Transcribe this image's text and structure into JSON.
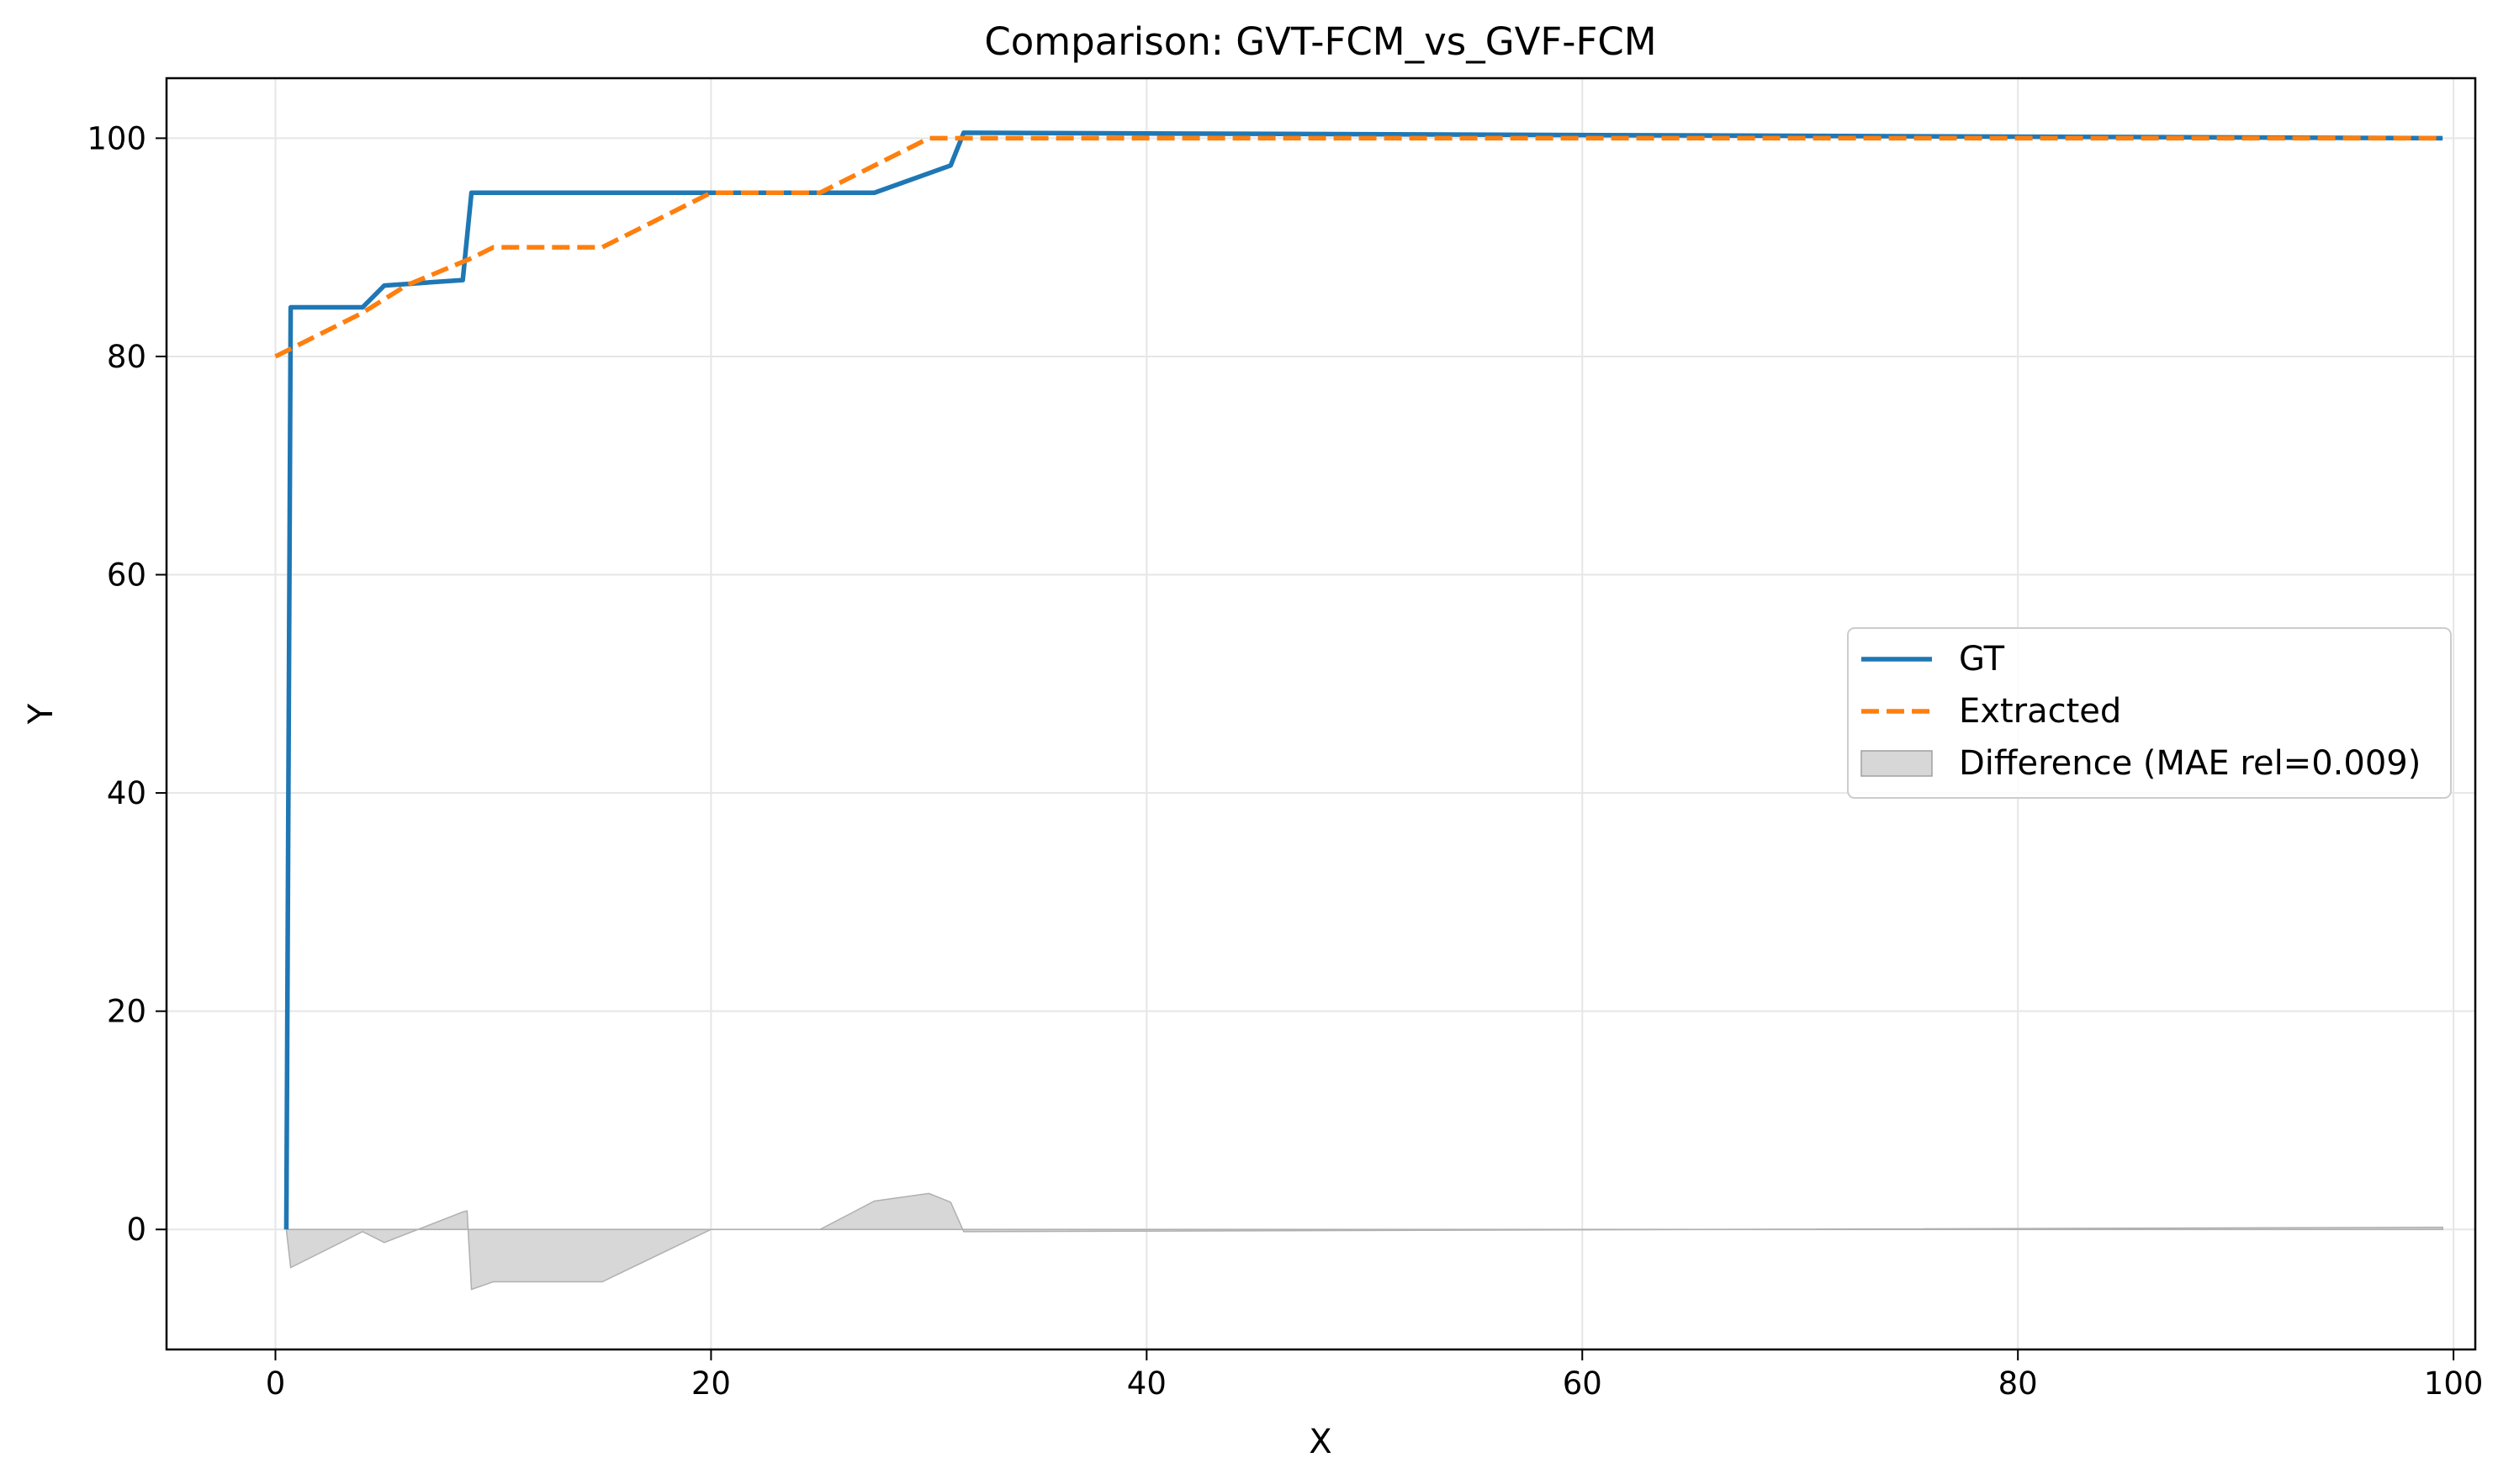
{
  "chart_data": {
    "type": "line",
    "title": "Comparison: GVT-FCM_vs_GVF-FCM",
    "xlabel": "X",
    "ylabel": "Y",
    "xlim": [
      -5,
      101
    ],
    "ylim": [
      -11,
      105.5
    ],
    "xticks": [
      0,
      20,
      40,
      60,
      80,
      100
    ],
    "yticks": [
      0,
      20,
      40,
      60,
      80,
      100
    ],
    "grid": true,
    "legend_position": "center-right",
    "series": [
      {
        "name": "GT",
        "color": "#1f77b4",
        "style": "solid",
        "x": [
          0.5,
          0.7,
          0.7,
          4.0,
          5.0,
          8.6,
          9.0,
          27.5,
          31.0,
          31.6,
          99.5
        ],
        "y": [
          0,
          84.5,
          84.5,
          84.5,
          86.5,
          87.0,
          95.0,
          95.0,
          97.5,
          100.5,
          100.0
        ]
      },
      {
        "name": "Extracted",
        "color": "#ff7f0e",
        "style": "dashed",
        "x": [
          0.0,
          4.0,
          6.0,
          9.0,
          10.0,
          15.0,
          20.0,
          25.0,
          30.0,
          31.6,
          99.5
        ],
        "y": [
          80.0,
          84.0,
          86.5,
          89.0,
          90.0,
          90.0,
          95.0,
          95.0,
          100.0,
          100.0,
          100.0
        ]
      },
      {
        "name": "Difference (MAE rel=0.009)",
        "color": "#b0b0b0",
        "style": "fill",
        "x": [
          0.5,
          0.7,
          4.0,
          5.0,
          8.6,
          8.8,
          9.0,
          10.0,
          15.0,
          20.0,
          25.0,
          27.5,
          30.0,
          31.0,
          31.6,
          99.5
        ],
        "y": [
          0,
          -3.5,
          -0.2,
          -1.2,
          1.6,
          1.7,
          -5.5,
          -4.8,
          -4.8,
          0,
          0,
          2.6,
          3.3,
          2.5,
          -0.2,
          0.2
        ]
      }
    ]
  }
}
